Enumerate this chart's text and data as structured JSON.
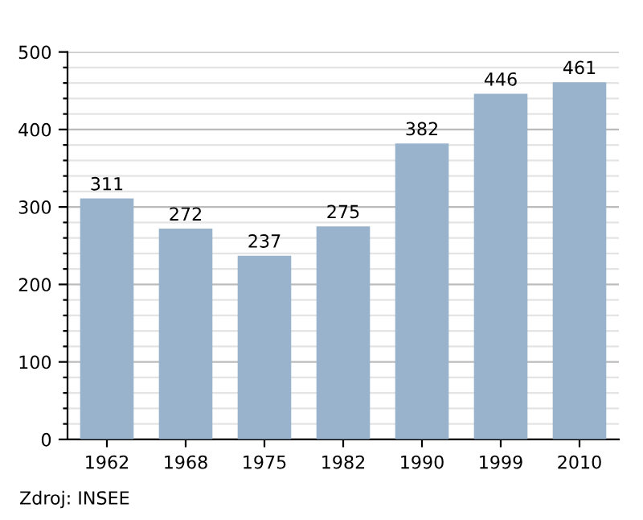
{
  "chart_data": {
    "type": "bar",
    "categories": [
      "1962",
      "1968",
      "1975",
      "1982",
      "1990",
      "1999",
      "2010"
    ],
    "values": [
      311,
      272,
      237,
      275,
      382,
      446,
      461
    ],
    "color": "#9ab3cc",
    "data_labels": true,
    "grid": "y",
    "ylim": [
      0,
      500
    ],
    "yticks": [
      0,
      {
        "value": 20,
        "label": null
      },
      {
        "value": 40,
        "label": null
      },
      {
        "value": 60,
        "label": null
      },
      {
        "value": 80,
        "label": null
      },
      100,
      {
        "value": 120,
        "label": null
      },
      {
        "value": 140,
        "label": null
      },
      {
        "value": 160,
        "label": null
      },
      {
        "value": 180,
        "label": null
      },
      200,
      {
        "value": 220,
        "label": null
      },
      {
        "value": 240,
        "label": null
      },
      {
        "value": 260,
        "label": null
      },
      {
        "value": 280,
        "label": null
      },
      300,
      {
        "value": 320,
        "label": null
      },
      {
        "value": 340,
        "label": null
      },
      {
        "value": 360,
        "label": null
      },
      {
        "value": 380,
        "label": null
      },
      400,
      {
        "value": 420,
        "label": null
      },
      {
        "value": 440,
        "label": null
      },
      {
        "value": 460,
        "label": null
      },
      {
        "value": 480,
        "label": null
      },
      500
    ],
    "annotations": [
      "Zdroj: INSEE"
    ]
  }
}
